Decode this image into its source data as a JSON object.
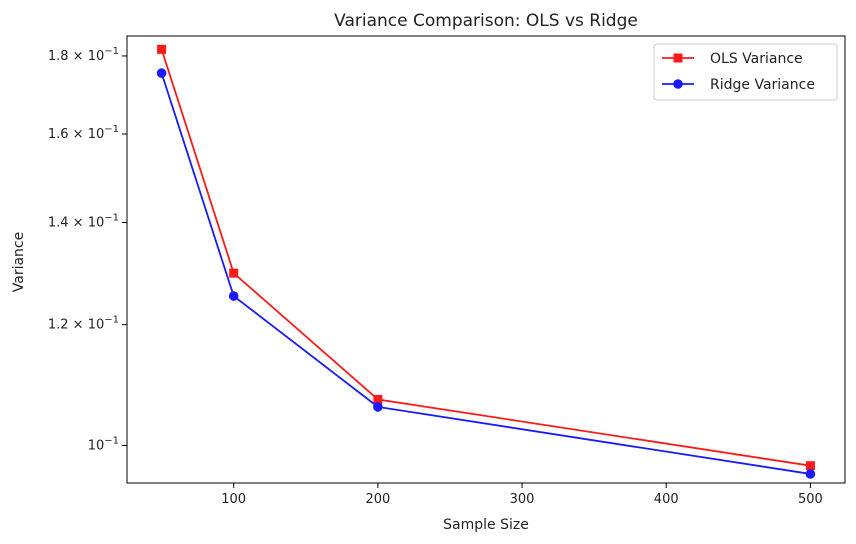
{
  "chart_data": {
    "type": "line",
    "title": "Variance Comparison: OLS vs Ridge",
    "xlabel": "Sample Size",
    "ylabel": "Variance",
    "x": [
      50,
      100,
      200,
      500
    ],
    "series": [
      {
        "name": "OLS Variance",
        "values": [
          0.1818,
          0.1297,
          0.1072,
          0.097
        ],
        "color": "#ff1a1a",
        "marker": "square"
      },
      {
        "name": "Ridge Variance",
        "values": [
          0.1754,
          0.1253,
          0.106,
          0.0958
        ],
        "color": "#1a1aff",
        "marker": "circle"
      }
    ],
    "xlim": [
      26,
      524
    ],
    "ylim": [
      0.0945,
      0.1855
    ],
    "yscale": "log",
    "grid": false,
    "legend_position": "top-right",
    "xticks": [
      100,
      200,
      300,
      400,
      500
    ],
    "xtick_labels": [
      "100",
      "200",
      "300",
      "400",
      "500"
    ],
    "yticks": [
      0.18,
      0.16,
      0.14,
      0.12,
      0.1
    ],
    "ytick_labels": [
      {
        "mantissa": "1.8",
        "base": "10",
        "exp": "−1"
      },
      {
        "mantissa": "1.6",
        "base": "10",
        "exp": "−1"
      },
      {
        "mantissa": "1.4",
        "base": "10",
        "exp": "−1"
      },
      {
        "mantissa": "1.2",
        "base": "10",
        "exp": "−1"
      },
      {
        "mantissa": "",
        "base": "10",
        "exp": "−1"
      }
    ]
  }
}
